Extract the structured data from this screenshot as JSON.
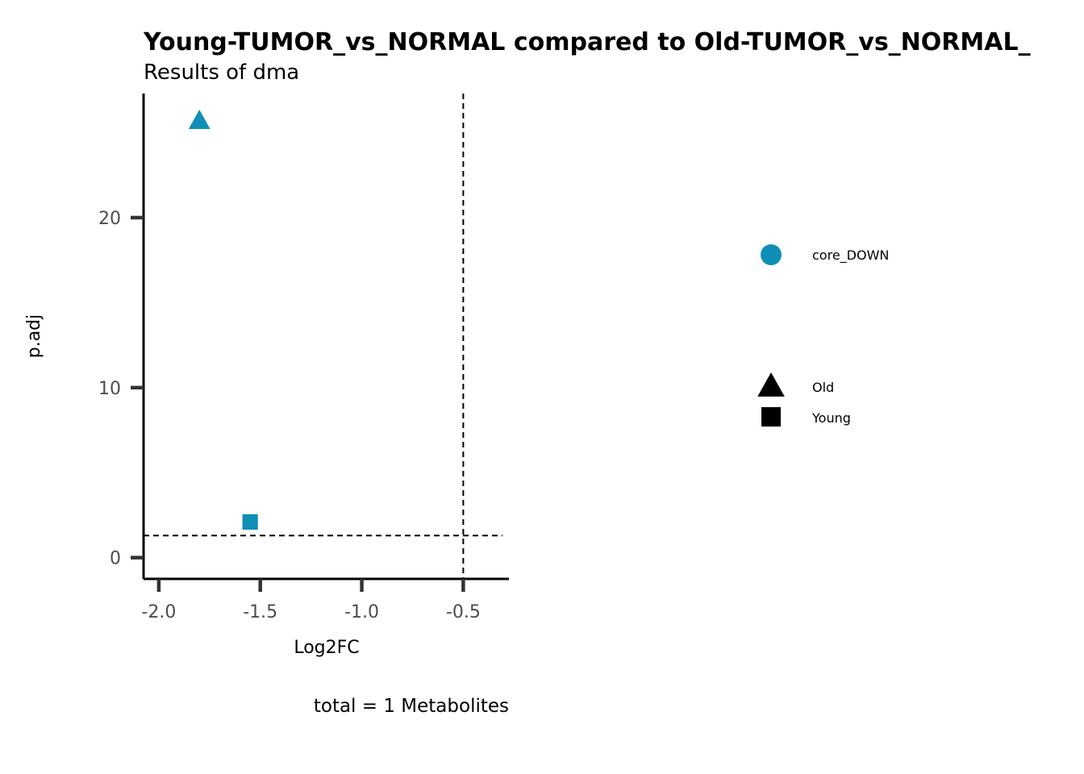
{
  "chart_data": {
    "type": "scatter",
    "title": "Young-TUMOR_vs_NORMAL compared to Old-TUMOR_vs_NORMAL_",
    "subtitle": "Results of dma",
    "xlabel": "Log2FC",
    "ylabel": "p.adj",
    "caption": "total = 1 Metabolites",
    "xlim": [
      -2.075,
      -0.275
    ],
    "ylim": [
      -1.25,
      27.3
    ],
    "x_ticks": [
      -2.0,
      -1.5,
      -1.0,
      -0.5
    ],
    "x_tick_labels": [
      "-2.0",
      "-1.5",
      "-1.0",
      "-0.5"
    ],
    "y_ticks": [
      0,
      10,
      20
    ],
    "y_tick_labels": [
      "0",
      "10",
      "20"
    ],
    "grid": false,
    "hline": 1.3,
    "vline": -0.5,
    "points": [
      {
        "x": -1.8,
        "y": 25.7,
        "color": "core_DOWN",
        "shape": "Old"
      },
      {
        "x": -1.55,
        "y": 2.1,
        "color": "core_DOWN",
        "shape": "Young"
      }
    ],
    "legend": {
      "placement": "right",
      "color_items": [
        {
          "label": "core_DOWN",
          "color": "#0f8fb6"
        }
      ],
      "shape_items": [
        {
          "label": "Old",
          "shape": "triangle"
        },
        {
          "label": "Young",
          "shape": "square"
        }
      ]
    },
    "colors": {
      "core_DOWN": "#0f8fb6"
    }
  }
}
